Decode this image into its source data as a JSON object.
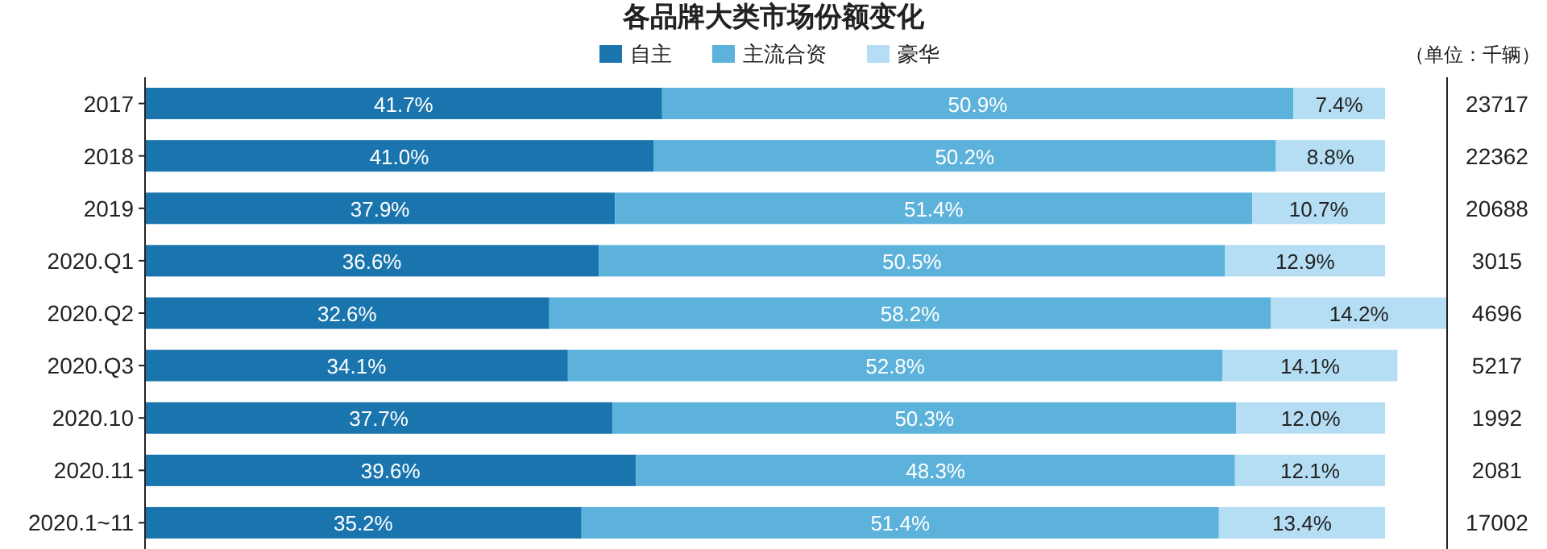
{
  "chart_data": {
    "type": "bar",
    "orientation": "horizontal",
    "stacked": true,
    "title": "各品牌大类市场份额变化",
    "categories": [
      "2017",
      "2018",
      "2019",
      "2020.Q1",
      "2020.Q2",
      "2020.Q3",
      "2020.10",
      "2020.11",
      "2020.1~11"
    ],
    "xlim": [
      0,
      105
    ],
    "tick_labels": "y",
    "legend": "top",
    "series": [
      {
        "name": "自主",
        "color": "#1a75ae",
        "values": [
          41.7,
          41.0,
          37.9,
          36.6,
          32.6,
          34.1,
          37.7,
          39.6,
          35.2
        ],
        "value_labels": [
          "41.7%",
          "41.0%",
          "37.9%",
          "36.6%",
          "32.6%",
          "34.1%",
          "37.7%",
          "39.6%",
          "35.2%"
        ]
      },
      {
        "name": "主流合资",
        "color": "#5cb2da",
        "values": [
          50.9,
          50.2,
          51.4,
          50.5,
          58.2,
          52.8,
          50.3,
          48.3,
          51.4
        ],
        "value_labels": [
          "50.9%",
          "50.2%",
          "51.4%",
          "50.5%",
          "58.2%",
          "52.8%",
          "50.3%",
          "48.3%",
          "51.4%"
        ]
      },
      {
        "name": "豪华",
        "color": "#b5def4",
        "values": [
          7.4,
          8.8,
          10.7,
          12.9,
          14.2,
          14.1,
          12.0,
          12.1,
          13.4
        ],
        "value_labels": [
          "7.4%",
          "8.8%",
          "10.7%",
          "12.9%",
          "14.2%",
          "14.1%",
          "12.0%",
          "12.1%",
          "13.4%"
        ]
      }
    ],
    "annotations": [
      "（单位：千辆）",
      "23717",
      "22362",
      "20688",
      "3015",
      "4696",
      "5217",
      "1992",
      "2081",
      "17002"
    ]
  }
}
